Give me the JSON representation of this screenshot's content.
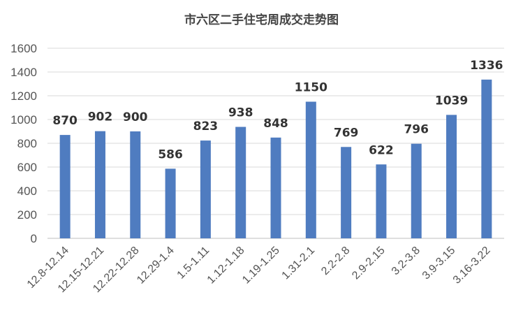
{
  "chart_data": {
    "type": "bar",
    "title": "市六区二手住宅周成交走势图",
    "categories": [
      "12.8-12.14",
      "12.15-12.21",
      "12.22-12.28",
      "12.29-1.4",
      "1.5-1.11",
      "1.12-1.18",
      "1.19-1.25",
      "1.31-2.1",
      "2.2-2.8",
      "2.9-2.15",
      "3.2-3.8",
      "3.9-3.15",
      "3.16-3.22"
    ],
    "values": [
      870,
      902,
      900,
      586,
      823,
      938,
      848,
      1150,
      769,
      622,
      796,
      1039,
      1336
    ],
    "ylim": [
      0,
      1600
    ],
    "yticks": [
      0,
      200,
      400,
      600,
      800,
      1000,
      1200,
      1400,
      1600
    ],
    "xlabel": "",
    "ylabel": "",
    "grid": true,
    "legend": "none",
    "colors": {
      "bar": "#4f7cc0",
      "grid": "#d9d9d9",
      "axis": "#bfbfbf"
    }
  }
}
